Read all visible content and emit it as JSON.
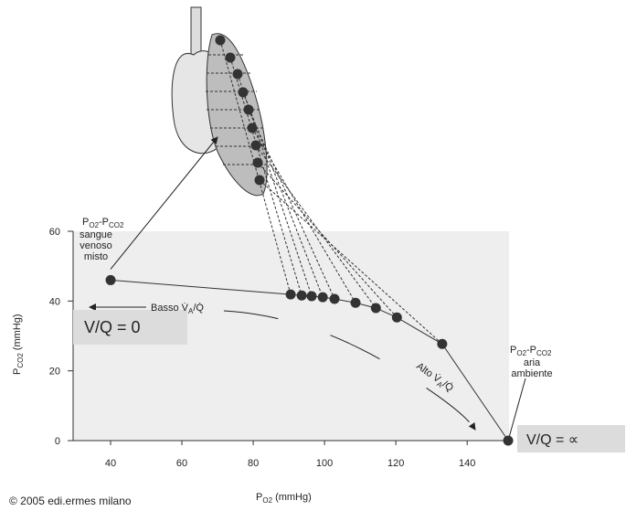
{
  "chart_data": {
    "type": "line",
    "x": [
      40,
      90.5,
      93.6,
      96.4,
      99.5,
      102.8,
      108.7,
      114.4,
      120.3,
      133,
      151.5
    ],
    "values": [
      46,
      41.9,
      41.6,
      41.4,
      41.1,
      40.6,
      39.5,
      38,
      35.3,
      27.7,
      0
    ],
    "color": "#333333",
    "xlim": [
      30,
      152
    ],
    "xticks": [
      40,
      60,
      80,
      100,
      120,
      140
    ],
    "ylim": [
      0,
      60
    ],
    "yticks": [
      0,
      20,
      40,
      60
    ],
    "x_label": {
      "p": "P",
      "sub": "O2",
      "unit": " (mmHg)"
    },
    "y_label": {
      "p": "P",
      "sub": "CO2",
      "unit": " (mmHg)"
    },
    "venous_label": {
      "p1": "P",
      "s1": "O2",
      "p2": "-P",
      "s2": "CO2",
      "lines": [
        "sangue",
        "venoso",
        "misto"
      ]
    },
    "air_label": {
      "p1": "P",
      "s1": "O2",
      "p2": "-P",
      "s2": "CO2",
      "lines": [
        "aria",
        "ambiente"
      ]
    },
    "low_label": {
      "a": "Basso V̇",
      "sub": "A",
      "b": "/Q̇"
    },
    "high_label": {
      "a": "Alto V̇",
      "sub": "A",
      "b": "/Q̇"
    },
    "vq_zero": "V/Q = 0",
    "vq_inf": "V/Q = ∝",
    "copyright": "© 2005 edi.ermes milano"
  }
}
